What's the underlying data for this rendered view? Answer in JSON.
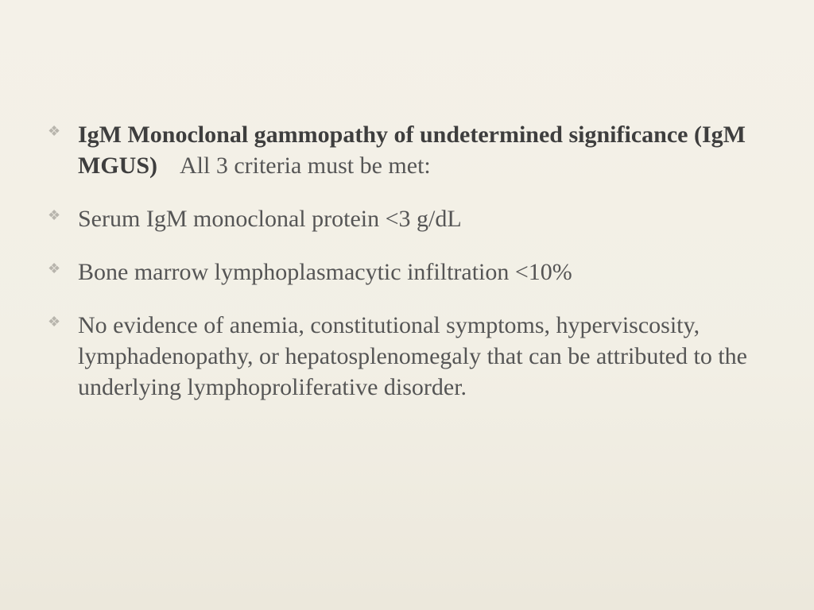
{
  "slide": {
    "background_gradient": [
      "#f4f1e8",
      "#f2efe5",
      "#ece8dc"
    ],
    "bullet_glyph": "❖",
    "bullet_color": "#b8b5ad",
    "text_color": "#555555",
    "bold_color": "#3e3e3e",
    "font_family": "Palatino Linotype",
    "font_size_pt": 30,
    "line_height": 1.3,
    "items": [
      {
        "bold_prefix": "IgM Monoclonal gammopathy of undetermined significance (IgM MGUS)",
        "rest": "All 3 criteria must be met:"
      },
      {
        "bold_prefix": "",
        "rest": "Serum IgM monoclonal protein <3 g/dL"
      },
      {
        "bold_prefix": "",
        "rest": "Bone marrow lymphoplasmacytic infiltration <10%"
      },
      {
        "bold_prefix": "",
        "rest": "No evidence of anemia, constitutional symptoms, hyperviscosity, lymphadenopathy, or hepatosplenomegaly that can be attributed to the underlying lymphoproliferative disorder."
      }
    ]
  }
}
